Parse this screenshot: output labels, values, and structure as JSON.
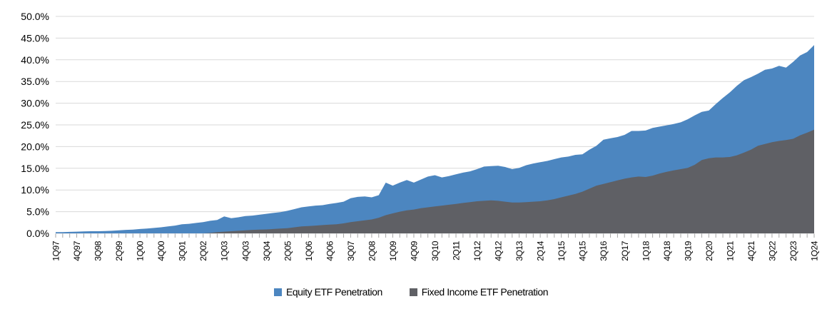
{
  "chart_data": {
    "type": "area",
    "overlap": true,
    "title": "",
    "legend_position": "bottom",
    "gridline_color": "#D9D9D9",
    "tick_color": "#A6A6A6",
    "x_tick_label_every": 3,
    "y_axis": {
      "min": 0,
      "max": 50,
      "step": 5,
      "labels": [
        "0.0%",
        "5.0%",
        "10.0%",
        "15.0%",
        "20.0%",
        "25.0%",
        "30.0%",
        "35.0%",
        "40.0%",
        "45.0%",
        "50.0%"
      ]
    },
    "quarters": [
      "1Q97",
      "2Q97",
      "3Q97",
      "4Q97",
      "1Q98",
      "2Q98",
      "3Q98",
      "4Q98",
      "1Q99",
      "2Q99",
      "3Q99",
      "4Q99",
      "1Q00",
      "2Q00",
      "3Q00",
      "4Q00",
      "1Q01",
      "2Q01",
      "3Q01",
      "4Q01",
      "1Q02",
      "2Q02",
      "3Q02",
      "4Q02",
      "1Q03",
      "2Q03",
      "3Q03",
      "4Q03",
      "1Q04",
      "2Q04",
      "3Q04",
      "4Q04",
      "1Q05",
      "2Q05",
      "3Q05",
      "4Q05",
      "1Q06",
      "2Q06",
      "3Q06",
      "4Q06",
      "1Q07",
      "2Q07",
      "3Q07",
      "4Q07",
      "1Q08",
      "2Q08",
      "3Q08",
      "4Q08",
      "1Q09",
      "2Q09",
      "3Q09",
      "4Q09",
      "1Q10",
      "2Q10",
      "3Q10",
      "4Q10",
      "1Q11",
      "2Q11",
      "3Q11",
      "4Q11",
      "1Q12",
      "2Q12",
      "3Q12",
      "4Q12",
      "1Q13",
      "2Q13",
      "3Q13",
      "4Q13",
      "1Q14",
      "2Q14",
      "3Q14",
      "4Q14",
      "1Q15",
      "2Q15",
      "3Q15",
      "4Q15",
      "1Q16",
      "2Q16",
      "3Q16",
      "4Q16",
      "1Q17",
      "2Q17",
      "3Q17",
      "4Q17",
      "1Q18",
      "2Q18",
      "3Q18",
      "4Q18",
      "1Q19",
      "2Q19",
      "3Q19",
      "4Q19",
      "1Q20",
      "2Q20",
      "3Q20",
      "4Q20",
      "1Q21",
      "2Q21",
      "3Q21",
      "4Q21",
      "1Q22",
      "2Q22",
      "3Q22",
      "4Q22",
      "1Q23",
      "2Q23",
      "3Q23",
      "4Q23",
      "1Q24"
    ],
    "series": [
      {
        "name": "Equity ETF Penetration",
        "color": "#4C86C0",
        "values": [
          0.3,
          0.3,
          0.35,
          0.4,
          0.45,
          0.5,
          0.5,
          0.55,
          0.6,
          0.7,
          0.8,
          0.85,
          1.0,
          1.1,
          1.25,
          1.4,
          1.6,
          1.8,
          2.1,
          2.2,
          2.4,
          2.6,
          2.9,
          3.1,
          3.9,
          3.5,
          3.7,
          4.0,
          4.1,
          4.3,
          4.5,
          4.7,
          4.9,
          5.2,
          5.6,
          6.0,
          6.2,
          6.4,
          6.5,
          6.8,
          7.0,
          7.3,
          8.1,
          8.4,
          8.5,
          8.3,
          8.8,
          11.7,
          11.0,
          11.7,
          12.3,
          11.7,
          12.4,
          13.1,
          13.4,
          12.9,
          13.2,
          13.6,
          14.0,
          14.3,
          14.8,
          15.4,
          15.5,
          15.6,
          15.3,
          14.8,
          15.1,
          15.7,
          16.1,
          16.4,
          16.7,
          17.1,
          17.5,
          17.7,
          18.1,
          18.2,
          19.3,
          20.2,
          21.6,
          21.9,
          22.2,
          22.7,
          23.6,
          23.6,
          23.7,
          24.3,
          24.6,
          24.9,
          25.2,
          25.6,
          26.3,
          27.2,
          28.0,
          28.3,
          29.8,
          31.2,
          32.5,
          34.0,
          35.3,
          36.0,
          36.8,
          37.7,
          38.0,
          38.6,
          38.2,
          39.5,
          41.0,
          41.8,
          43.4
        ]
      },
      {
        "name": "Fixed Income ETF Penetration",
        "color": "#5F6065",
        "values": [
          0,
          0,
          0,
          0,
          0,
          0,
          0,
          0,
          0,
          0,
          0,
          0,
          0,
          0,
          0,
          0,
          0,
          0,
          0,
          0,
          0,
          0,
          0.1,
          0.3,
          0.4,
          0.5,
          0.6,
          0.7,
          0.8,
          0.85,
          0.9,
          1.0,
          1.1,
          1.2,
          1.4,
          1.6,
          1.7,
          1.8,
          1.9,
          2.0,
          2.1,
          2.3,
          2.6,
          2.8,
          3.0,
          3.2,
          3.6,
          4.2,
          4.6,
          5.0,
          5.3,
          5.5,
          5.8,
          6.0,
          6.2,
          6.4,
          6.6,
          6.8,
          7.0,
          7.2,
          7.4,
          7.5,
          7.6,
          7.5,
          7.3,
          7.1,
          7.1,
          7.2,
          7.3,
          7.4,
          7.6,
          7.9,
          8.3,
          8.7,
          9.1,
          9.6,
          10.3,
          11.0,
          11.4,
          11.8,
          12.2,
          12.6,
          12.9,
          13.1,
          13.0,
          13.3,
          13.8,
          14.2,
          14.5,
          14.8,
          15.1,
          15.8,
          16.9,
          17.3,
          17.5,
          17.5,
          17.6,
          18.0,
          18.6,
          19.3,
          20.2,
          20.6,
          21.0,
          21.3,
          21.5,
          21.8,
          22.6,
          23.2,
          23.9
        ]
      }
    ]
  }
}
